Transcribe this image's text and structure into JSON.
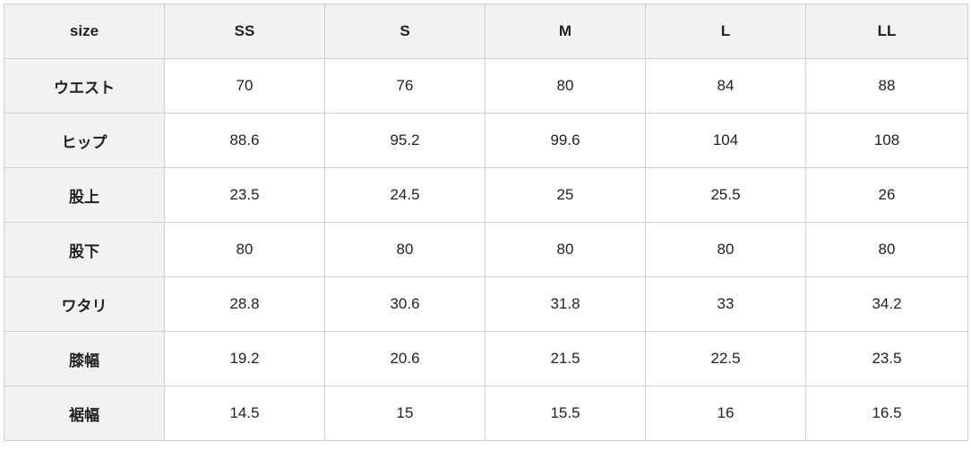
{
  "table": {
    "header": [
      "size",
      "SS",
      "S",
      "M",
      "L",
      "LL"
    ],
    "rows": [
      [
        "ウエスト",
        "70",
        "76",
        "80",
        "84",
        "88"
      ],
      [
        "ヒップ",
        "88.6",
        "95.2",
        "99.6",
        "104",
        "108"
      ],
      [
        "股上",
        "23.5",
        "24.5",
        "25",
        "25.5",
        "26"
      ],
      [
        "股下",
        "80",
        "80",
        "80",
        "80",
        "80"
      ],
      [
        "ワタリ",
        "28.8",
        "30.6",
        "31.8",
        "33",
        "34.2"
      ],
      [
        "膝幅",
        "19.2",
        "20.6",
        "21.5",
        "22.5",
        "23.5"
      ],
      [
        "裾幅",
        "14.5",
        "15",
        "15.5",
        "16",
        "16.5"
      ]
    ]
  }
}
